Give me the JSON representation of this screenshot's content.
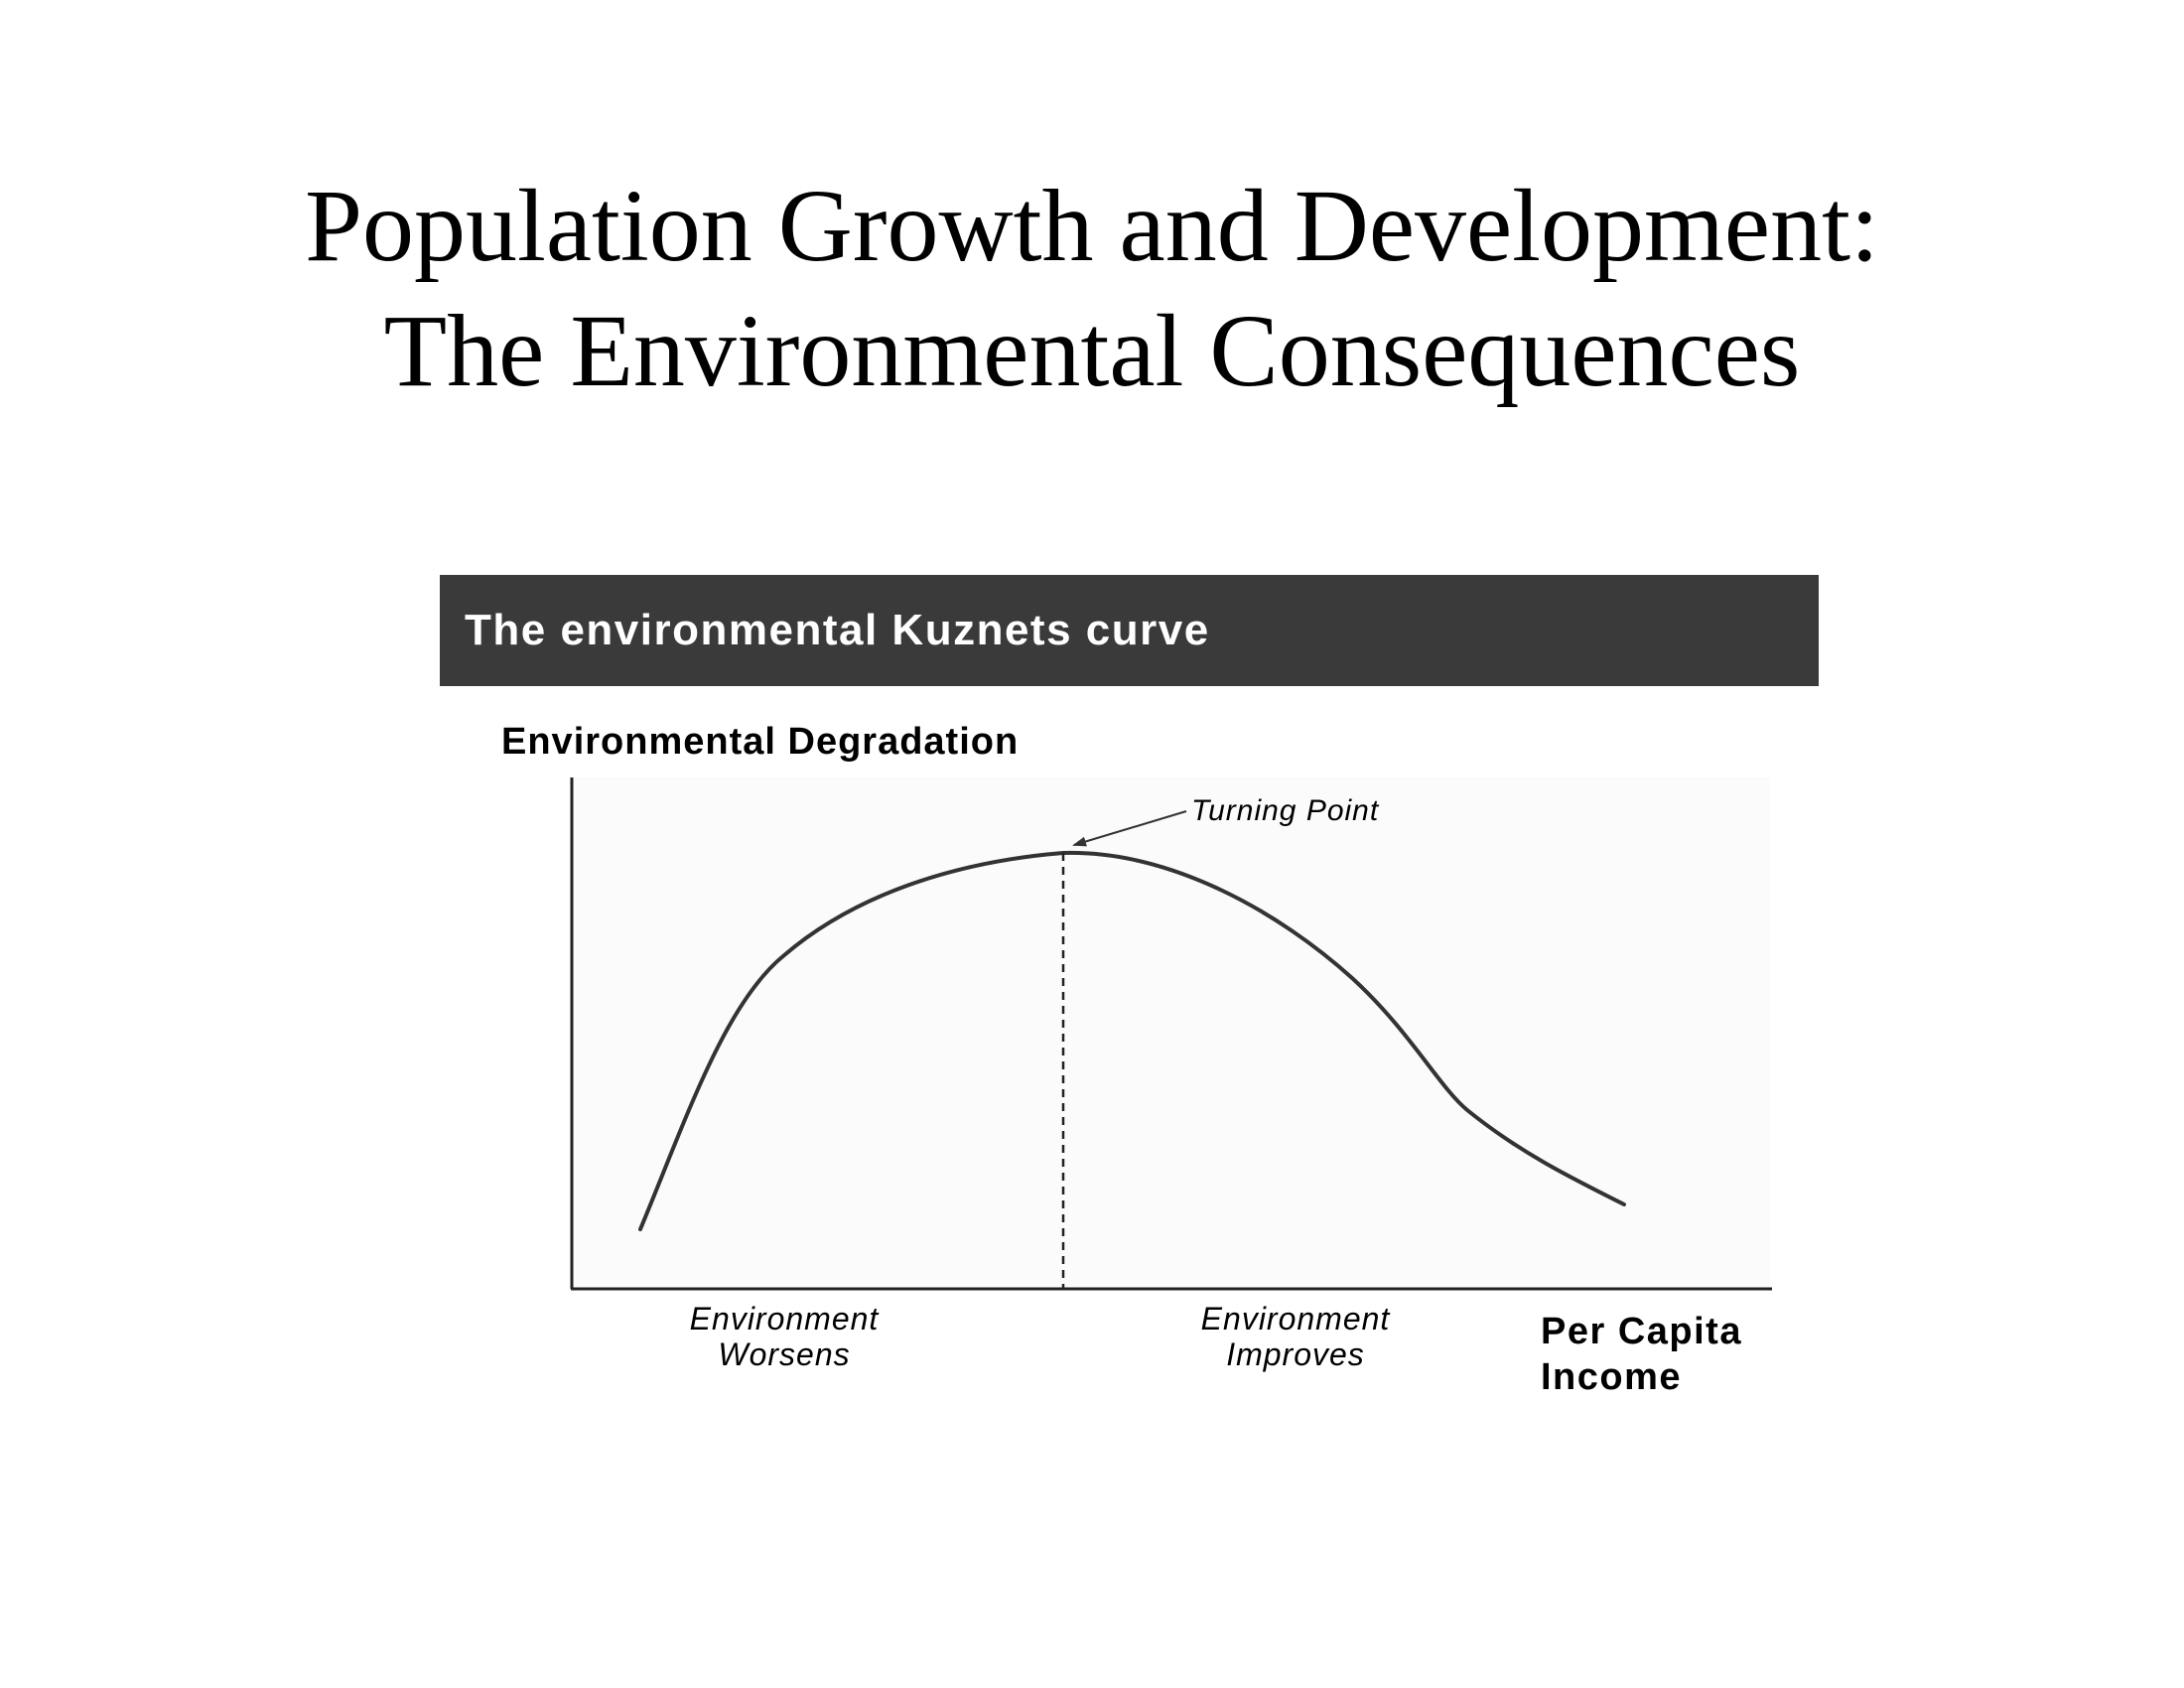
{
  "slide": {
    "title_line1": "Population Growth and Development:",
    "title_line2": "The Environmental Consequences"
  },
  "figure": {
    "banner_title": "The environmental Kuznets curve",
    "banner_color": "#3a3a3a"
  },
  "chart_data": {
    "type": "line",
    "title": "The environmental Kuznets curve",
    "ylabel": "Environmental Degradation",
    "xlabel_line1": "Per Capita",
    "xlabel_line2": "Income",
    "regions": [
      {
        "line1": "Environment",
        "line2": "Worsens"
      },
      {
        "line1": "Environment",
        "line2": "Improves"
      }
    ],
    "annotation": {
      "label": "Turning Point"
    },
    "curve_color": "#333333"
  }
}
